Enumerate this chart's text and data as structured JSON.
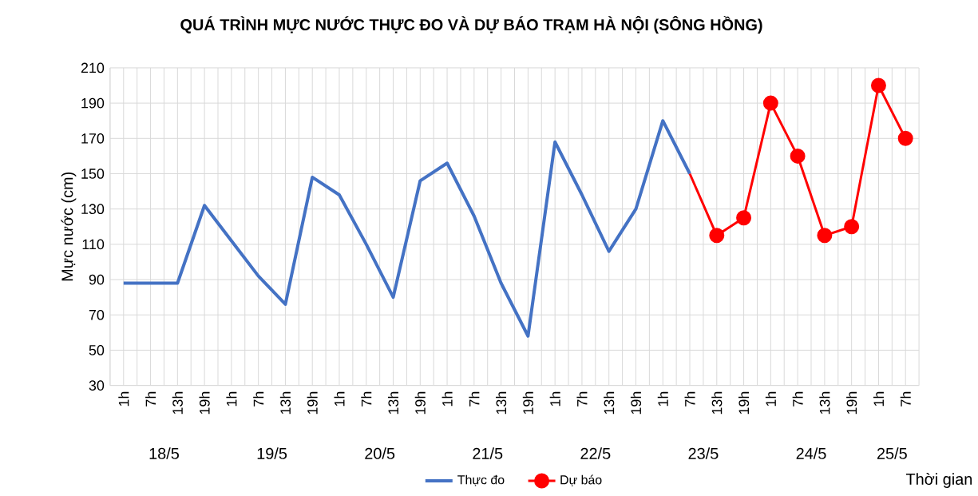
{
  "chart_data": {
    "type": "line",
    "title": "QUÁ TRÌNH MỰC NƯỚC THỰC ĐO VÀ DỰ BÁO TRẠM HÀ NỘI (SÔNG HỒNG)",
    "ylabel": "Mực nước (cm)",
    "xlabel": "Thời gian",
    "categories": [
      "1h",
      "7h",
      "13h",
      "19h",
      "1h",
      "7h",
      "13h",
      "19h",
      "1h",
      "7h",
      "13h",
      "19h",
      "1h",
      "7h",
      "13h",
      "19h",
      "1h",
      "7h",
      "13h",
      "19h",
      "1h",
      "7h",
      "13h",
      "19h",
      "1h",
      "7h",
      "13h",
      "19h",
      "1h",
      "7h"
    ],
    "annotations": [
      "18/5",
      "19/5",
      "20/5",
      "21/5",
      "22/5",
      "23/5",
      "24/5",
      "25/5"
    ],
    "series": [
      {
        "name": "Thực đo",
        "color": "#4472c4",
        "marker": "none",
        "values": [
          88,
          88,
          88,
          132,
          112,
          92,
          76,
          148,
          138,
          110,
          80,
          146,
          156,
          126,
          88,
          58,
          168,
          138,
          106,
          130,
          180,
          150,
          null,
          null,
          null,
          null,
          null,
          null,
          null,
          null
        ]
      },
      {
        "name": "Dự báo",
        "color": "#ff0000",
        "marker": "circle",
        "values": [
          null,
          null,
          null,
          null,
          null,
          null,
          null,
          null,
          null,
          null,
          null,
          null,
          null,
          null,
          null,
          null,
          null,
          null,
          null,
          null,
          null,
          150,
          115,
          125,
          190,
          160,
          115,
          120,
          200,
          170
        ]
      }
    ],
    "ylim": [
      30,
      210
    ],
    "yticks": [
      30,
      50,
      70,
      90,
      110,
      130,
      150,
      170,
      190,
      210
    ],
    "grid": true,
    "legend": "bottom"
  }
}
